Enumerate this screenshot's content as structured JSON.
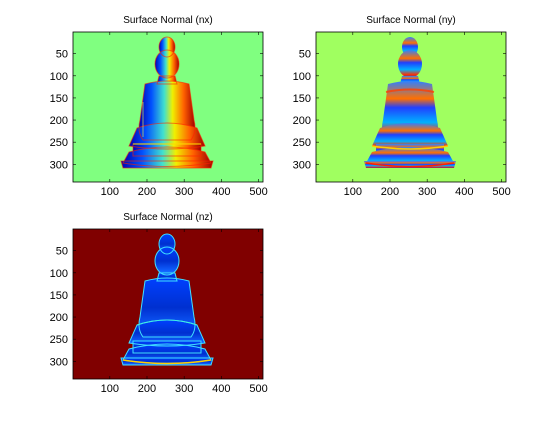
{
  "chart_data": [
    {
      "type": "heatmap",
      "title": "Surface Normal (nx)",
      "x_ticks": [
        100,
        200,
        300,
        400,
        500
      ],
      "y_ticks": [
        50,
        100,
        150,
        200,
        250,
        300
      ],
      "xlim": [
        1,
        512
      ],
      "ylim": [
        1,
        340
      ],
      "y_direction": "reversed",
      "background_color": "#80ff80",
      "subject": "buddha-statue",
      "colormap": "jet"
    },
    {
      "type": "heatmap",
      "title": "Surface Normal (ny)",
      "x_ticks": [
        100,
        200,
        300,
        400,
        500
      ],
      "y_ticks": [
        50,
        100,
        150,
        200,
        250,
        300
      ],
      "xlim": [
        1,
        512
      ],
      "ylim": [
        1,
        340
      ],
      "y_direction": "reversed",
      "background_color": "#a0ff60",
      "subject": "buddha-statue",
      "colormap": "jet"
    },
    {
      "type": "heatmap",
      "title": "Surface Normal (nz)",
      "x_ticks": [
        100,
        200,
        300,
        400,
        500
      ],
      "y_ticks": [
        50,
        100,
        150,
        200,
        250,
        300
      ],
      "xlim": [
        1,
        512
      ],
      "ylim": [
        1,
        340
      ],
      "y_direction": "reversed",
      "background_color": "#800000",
      "subject": "buddha-statue",
      "colormap": "jet"
    }
  ]
}
